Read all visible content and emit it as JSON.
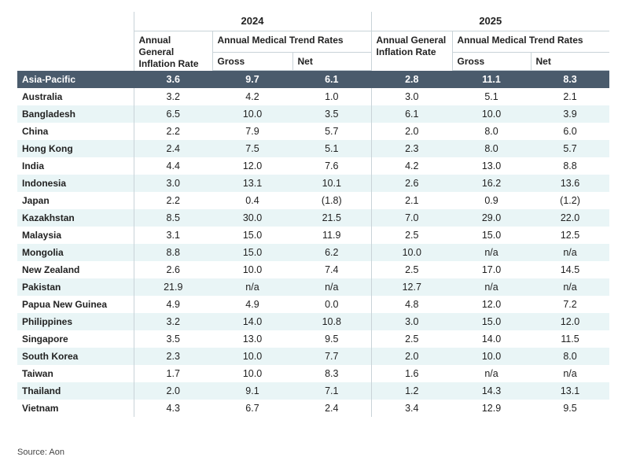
{
  "header": {
    "groups": [
      {
        "year": "2024",
        "inflation": "Annual General Inflation Rate",
        "trend": "Annual Medical Trend Rates",
        "gross": "Gross",
        "net": "Net"
      },
      {
        "year": "2025",
        "inflation": "Annual General Inflation Rate",
        "trend": "Annual Medical Trend Rates",
        "gross": "Gross",
        "net": "Net"
      }
    ]
  },
  "rows": [
    [
      "Asia-Pacific",
      "3.6",
      "9.7",
      "6.1",
      "2.8",
      "11.1",
      "8.3"
    ],
    [
      "Australia",
      "3.2",
      "4.2",
      "1.0",
      "3.0",
      "5.1",
      "2.1"
    ],
    [
      "Bangladesh",
      "6.5",
      "10.0",
      "3.5",
      "6.1",
      "10.0",
      "3.9"
    ],
    [
      "China",
      "2.2",
      "7.9",
      "5.7",
      "2.0",
      "8.0",
      "6.0"
    ],
    [
      "Hong Kong",
      "2.4",
      "7.5",
      "5.1",
      "2.3",
      "8.0",
      "5.7"
    ],
    [
      "India",
      "4.4",
      "12.0",
      "7.6",
      "4.2",
      "13.0",
      "8.8"
    ],
    [
      "Indonesia",
      "3.0",
      "13.1",
      "10.1",
      "2.6",
      "16.2",
      "13.6"
    ],
    [
      "Japan",
      "2.2",
      "0.4",
      "(1.8)",
      "2.1",
      "0.9",
      "(1.2)"
    ],
    [
      "Kazakhstan",
      "8.5",
      "30.0",
      "21.5",
      "7.0",
      "29.0",
      "22.0"
    ],
    [
      "Malaysia",
      "3.1",
      "15.0",
      "11.9",
      "2.5",
      "15.0",
      "12.5"
    ],
    [
      "Mongolia",
      "8.8",
      "15.0",
      "6.2",
      "10.0",
      "n/a",
      "n/a"
    ],
    [
      "New Zealand",
      "2.6",
      "10.0",
      "7.4",
      "2.5",
      "17.0",
      "14.5"
    ],
    [
      "Pakistan",
      "21.9",
      "n/a",
      "n/a",
      "12.7",
      "n/a",
      "n/a"
    ],
    [
      "Papua New Guinea",
      "4.9",
      "4.9",
      "0.0",
      "4.8",
      "12.0",
      "7.2"
    ],
    [
      "Philippines",
      "3.2",
      "14.0",
      "10.8",
      "3.0",
      "15.0",
      "12.0"
    ],
    [
      "Singapore",
      "3.5",
      "13.0",
      "9.5",
      "2.5",
      "14.0",
      "11.5"
    ],
    [
      "South Korea",
      "2.3",
      "10.0",
      "7.7",
      "2.0",
      "10.0",
      "8.0"
    ],
    [
      "Taiwan",
      "1.7",
      "10.0",
      "8.3",
      "1.6",
      "n/a",
      "n/a"
    ],
    [
      "Thailand",
      "2.0",
      "9.1",
      "7.1",
      "1.2",
      "14.3",
      "13.1"
    ],
    [
      "Vietnam",
      "4.3",
      "6.7",
      "2.4",
      "3.4",
      "12.9",
      "9.5"
    ]
  ],
  "source": "Source: Aon"
}
